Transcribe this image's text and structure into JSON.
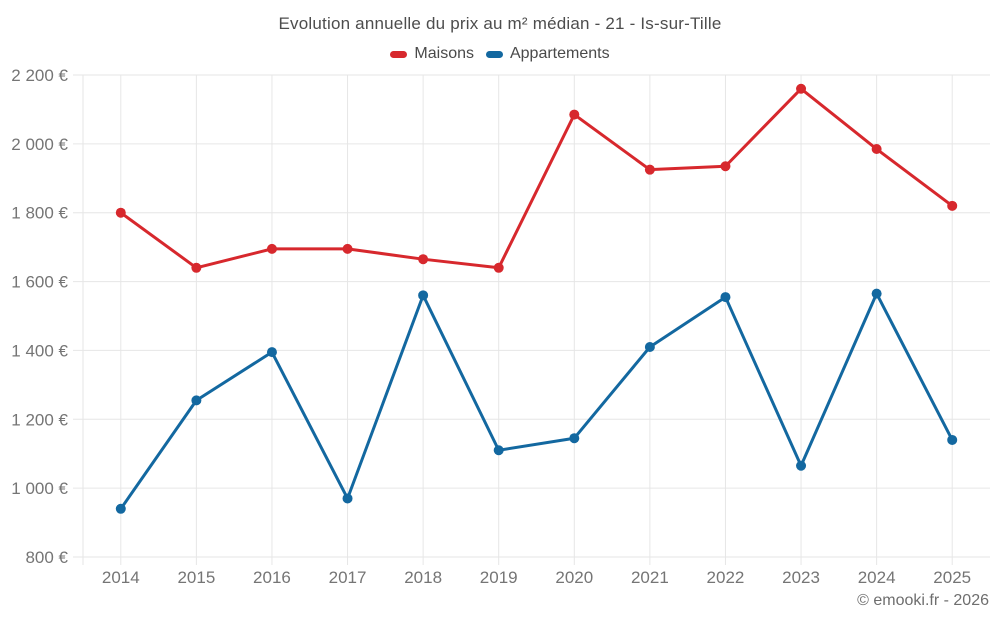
{
  "chart_data": {
    "type": "line",
    "title": "Evolution annuelle du prix au m² médian - 21 - Is-sur-Tille",
    "categories": [
      "2014",
      "2015",
      "2016",
      "2017",
      "2018",
      "2019",
      "2020",
      "2021",
      "2022",
      "2023",
      "2024",
      "2025"
    ],
    "series": [
      {
        "name": "Maisons",
        "color": "#d7282d",
        "values": [
          1800,
          1640,
          1695,
          1695,
          1665,
          1640,
          2085,
          1925,
          1935,
          2160,
          1985,
          1820
        ]
      },
      {
        "name": "Appartements",
        "color": "#1368a0",
        "values": [
          940,
          1255,
          1395,
          970,
          1560,
          1110,
          1145,
          1410,
          1555,
          1065,
          1565,
          1140
        ]
      }
    ],
    "ylabel": "",
    "xlabel": "",
    "ylim": [
      800,
      2200
    ],
    "ytick_values": [
      800,
      1000,
      1200,
      1400,
      1600,
      1800,
      2000,
      2200
    ],
    "ytick_labels": [
      "800 €",
      "1 000 €",
      "1 200 €",
      "1 400 €",
      "1 600 €",
      "1 800 €",
      "2 000 €",
      "2 200 €"
    ],
    "grid": true,
    "legend_position": "top-center"
  },
  "colors": {
    "grid": "#e6e6e6",
    "axis_text": "#757575",
    "title_text": "#4d4d4d",
    "background": "#ffffff"
  },
  "footer": {
    "copyright": "© emooki.fr - 2026"
  }
}
